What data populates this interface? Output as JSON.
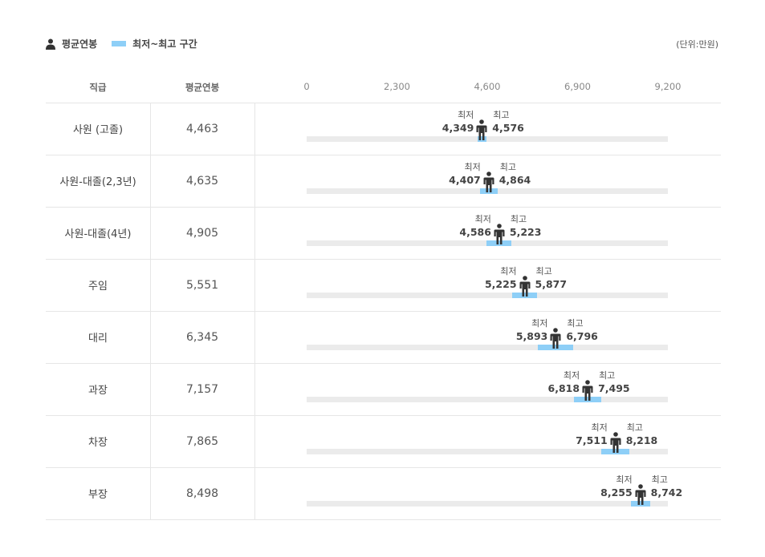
{
  "legend": {
    "avg_label": "평균연봉",
    "range_label": "최저~최고 구간",
    "unit": "(단위:만원)"
  },
  "headers": {
    "grade": "직급",
    "avg": "평균연봉"
  },
  "labels": {
    "min": "최저",
    "max": "최고"
  },
  "colors": {
    "range": "#8ecff7",
    "track": "#ebebeb",
    "figure": "#333333"
  },
  "chart_data": {
    "type": "range-bar",
    "xlim": [
      0,
      9200
    ],
    "ticks": [
      0,
      2300,
      4600,
      6900,
      9200
    ],
    "tick_labels": [
      "0",
      "2,300",
      "4,600",
      "6,900",
      "9,200"
    ],
    "rows": [
      {
        "grade": "사원 (고졸)",
        "avg": 4463,
        "avg_label": "4,463",
        "min": 4349,
        "min_label": "4,349",
        "max": 4576,
        "max_label": "4,576"
      },
      {
        "grade": "사원-대졸(2,3년)",
        "avg": 4635,
        "avg_label": "4,635",
        "min": 4407,
        "min_label": "4,407",
        "max": 4864,
        "max_label": "4,864"
      },
      {
        "grade": "사원-대졸(4년)",
        "avg": 4905,
        "avg_label": "4,905",
        "min": 4586,
        "min_label": "4,586",
        "max": 5223,
        "max_label": "5,223"
      },
      {
        "grade": "주임",
        "avg": 5551,
        "avg_label": "5,551",
        "min": 5225,
        "min_label": "5,225",
        "max": 5877,
        "max_label": "5,877"
      },
      {
        "grade": "대리",
        "avg": 6345,
        "avg_label": "6,345",
        "min": 5893,
        "min_label": "5,893",
        "max": 6796,
        "max_label": "6,796"
      },
      {
        "grade": "과장",
        "avg": 7157,
        "avg_label": "7,157",
        "min": 6818,
        "min_label": "6,818",
        "max": 7495,
        "max_label": "7,495"
      },
      {
        "grade": "차장",
        "avg": 7865,
        "avg_label": "7,865",
        "min": 7511,
        "min_label": "7,511",
        "max": 8218,
        "max_label": "8,218"
      },
      {
        "grade": "부장",
        "avg": 8498,
        "avg_label": "8,498",
        "min": 8255,
        "min_label": "8,255",
        "max": 8742,
        "max_label": "8,742"
      }
    ]
  }
}
